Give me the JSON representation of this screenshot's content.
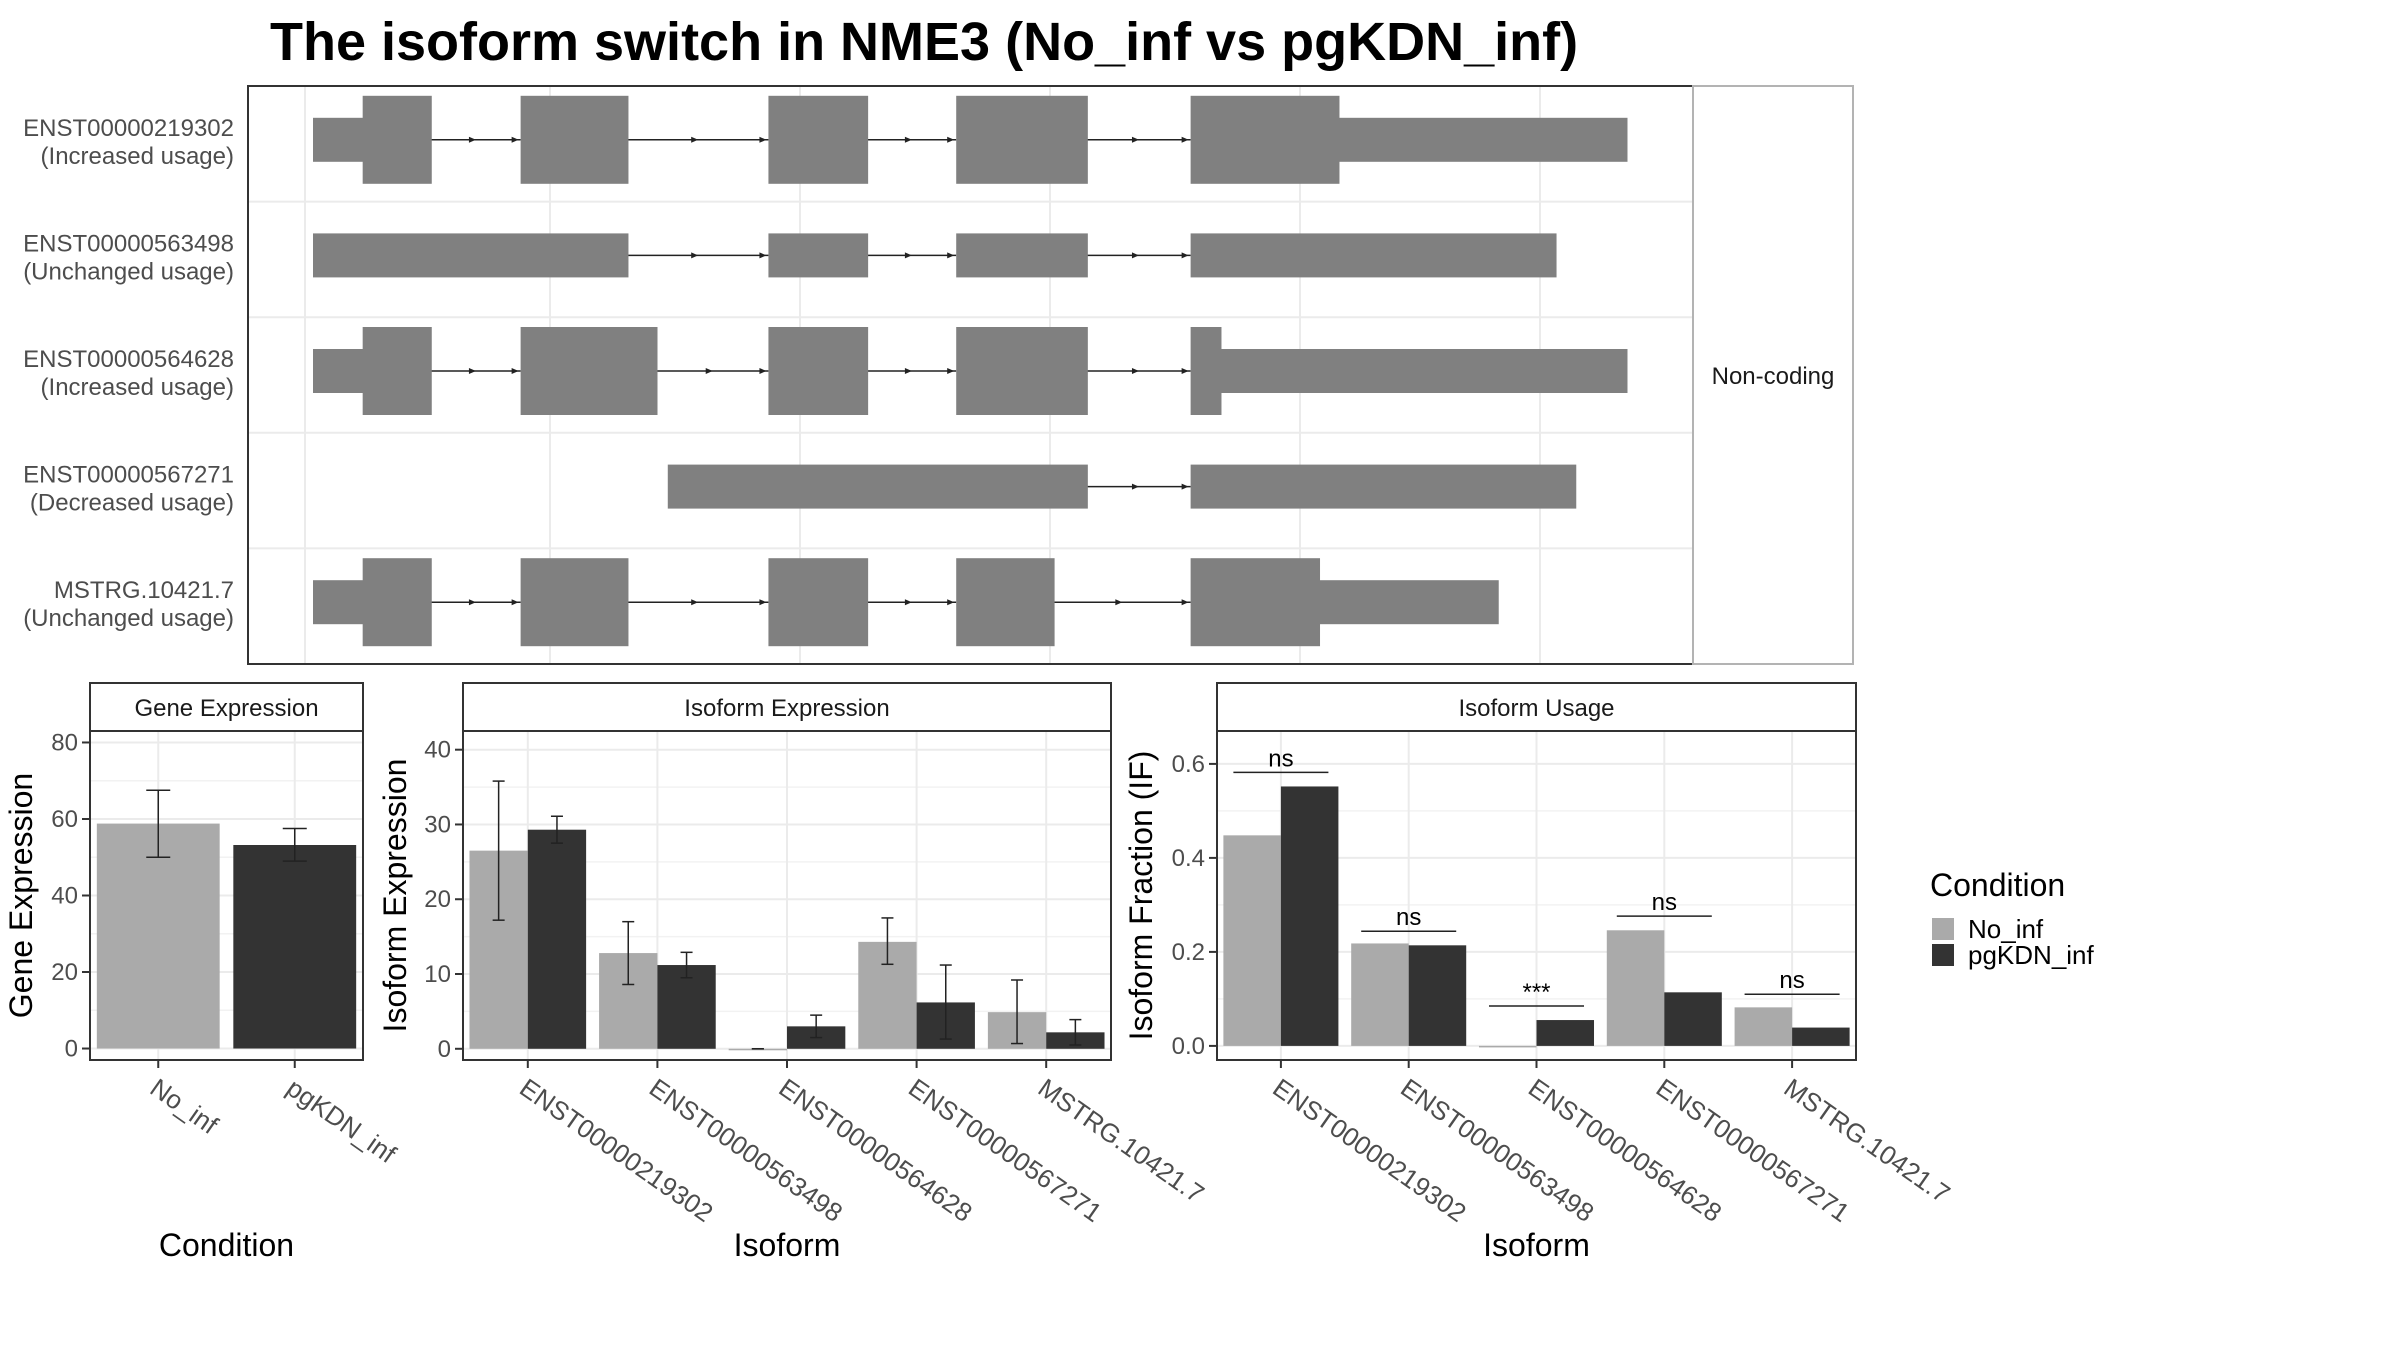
{
  "title": "The isoform switch in NME3 (No_inf vs pgKDN_inf)",
  "colors": {
    "No_inf": "#aaaaaa",
    "pgKDN_inf": "#333333",
    "exon": "#808080",
    "panel_border": "#333333",
    "strip_fill": "#ffffff",
    "grid": "#ebebeb"
  },
  "legend": {
    "title": "Condition",
    "items": [
      {
        "label": "No_inf",
        "color": "#aaaaaa"
      },
      {
        "label": "pgKDN_inf",
        "color": "#333333"
      }
    ]
  },
  "structure": {
    "strip_label": "Non-coding",
    "isoforms": [
      {
        "id": "ENST00000219302",
        "usage": "(Increased usage)",
        "exons": [
          [
            0.0,
            0.0378,
            "n"
          ],
          [
            0.0378,
            0.09,
            "w"
          ],
          [
            0.158,
            0.2397,
            "w"
          ],
          [
            0.3466,
            0.4221,
            "w"
          ],
          [
            0.4895,
            0.5893,
            "w"
          ],
          [
            0.6679,
            0.7808,
            "w"
          ],
          [
            0.7808,
            1.0,
            "n"
          ]
        ]
      },
      {
        "id": "ENST00000563498",
        "usage": "(Unchanged usage)",
        "exons": [
          [
            0.0,
            0.2397,
            "n"
          ],
          [
            0.3466,
            0.4221,
            "n"
          ],
          [
            0.4895,
            0.5893,
            "n"
          ],
          [
            0.6679,
            0.946,
            "n"
          ]
        ]
      },
      {
        "id": "ENST00000564628",
        "usage": "(Increased usage)",
        "exons": [
          [
            0.0,
            0.0378,
            "n"
          ],
          [
            0.0378,
            0.09,
            "w"
          ],
          [
            0.158,
            0.2618,
            "w"
          ],
          [
            0.3466,
            0.4221,
            "w"
          ],
          [
            0.4895,
            0.5893,
            "w"
          ],
          [
            0.6679,
            0.691,
            "w"
          ],
          [
            0.691,
            1.0,
            "n"
          ]
        ]
      },
      {
        "id": "ENST00000567271",
        "usage": "(Decreased usage)",
        "exons": [
          [
            0.27,
            0.5893,
            "n"
          ],
          [
            0.6679,
            0.961,
            "n"
          ]
        ]
      },
      {
        "id": "MSTRG.10421.7",
        "usage": "(Unchanged usage)",
        "exons": [
          [
            0.0,
            0.0378,
            "n"
          ],
          [
            0.0378,
            0.09,
            "w"
          ],
          [
            0.158,
            0.2397,
            "w"
          ],
          [
            0.3466,
            0.4221,
            "w"
          ],
          [
            0.4895,
            0.564,
            "w"
          ],
          [
            0.6679,
            0.766,
            "w"
          ],
          [
            0.766,
            0.902,
            "n"
          ]
        ]
      }
    ]
  },
  "chart_data": [
    {
      "type": "bar",
      "panel": "Gene Expression",
      "categories": [
        "No_inf",
        "pgKDN_inf"
      ],
      "values": [
        58.8,
        53.2
      ],
      "err_low": [
        50.0,
        49.0
      ],
      "err_high": [
        67.5,
        57.5
      ],
      "ylim": [
        -3,
        83
      ],
      "yticks": [
        0,
        20,
        40,
        60,
        80
      ],
      "xlabel": "Condition",
      "ylabel": "Gene Expression"
    },
    {
      "type": "bar",
      "panel": "Isoform Expression",
      "categories": [
        "ENST00000219302",
        "ENST00000563498",
        "ENST00000564628",
        "ENST00000567271",
        "MSTRG.10421.7"
      ],
      "series": [
        {
          "name": "No_inf",
          "values": [
            26.5,
            12.8,
            0.0,
            14.3,
            4.9
          ],
          "err_low": [
            17.2,
            8.6,
            0.0,
            11.3,
            0.7
          ],
          "err_high": [
            35.8,
            17.0,
            0.0,
            17.5,
            9.2
          ]
        },
        {
          "name": "pgKDN_inf",
          "values": [
            29.3,
            11.2,
            3.0,
            6.2,
            2.2
          ],
          "err_low": [
            27.5,
            9.5,
            1.5,
            1.3,
            0.5
          ],
          "err_high": [
            31.1,
            12.9,
            4.5,
            11.2,
            3.9
          ]
        }
      ],
      "ylim": [
        -1.5,
        42.5
      ],
      "yticks": [
        0,
        10,
        20,
        30,
        40
      ],
      "xlabel": "Isoform",
      "ylabel": "Isoform Expression"
    },
    {
      "type": "bar",
      "panel": "Isoform Usage",
      "categories": [
        "ENST00000219302",
        "ENST00000563498",
        "ENST00000564628",
        "ENST00000567271",
        "MSTRG.10421.7"
      ],
      "series": [
        {
          "name": "No_inf",
          "values": [
            0.448,
            0.218,
            0.0,
            0.246,
            0.082
          ]
        },
        {
          "name": "pgKDN_inf",
          "values": [
            0.552,
            0.214,
            0.055,
            0.114,
            0.039
          ]
        }
      ],
      "significance": [
        "ns",
        "ns",
        "***",
        "ns",
        "ns"
      ],
      "sig_y": [
        0.582,
        0.244,
        0.085,
        0.276,
        0.11
      ],
      "ylim": [
        -0.03,
        0.67
      ],
      "yticks": [
        0.0,
        0.2,
        0.4,
        0.6
      ],
      "ytick_labels": [
        "0.0",
        "0.2",
        "0.4",
        "0.6"
      ],
      "xlabel": "Isoform",
      "ylabel": "Isoform Fraction (IF)"
    }
  ]
}
